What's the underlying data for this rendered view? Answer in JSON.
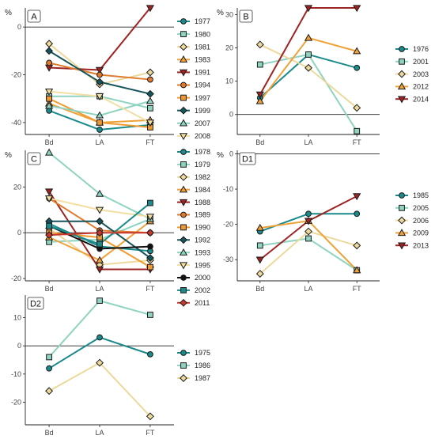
{
  "chart_data": [
    {
      "type": "line",
      "title": "A",
      "ylabel": "%",
      "categories": [
        "Bd",
        "LA",
        "FT"
      ],
      "ylim": [
        -45,
        8
      ],
      "yticks": [
        0,
        -20,
        -40
      ],
      "series": [
        {
          "name": "1977",
          "color": "#1a8a8a",
          "marker": "circle",
          "values": [
            -35,
            -43,
            -41
          ]
        },
        {
          "name": "1980",
          "color": "#8fd3c1",
          "marker": "square",
          "values": [
            -29,
            -29,
            -34
          ]
        },
        {
          "name": "1981",
          "color": "#ecd99b",
          "marker": "diamond",
          "values": [
            -7,
            -24,
            -19
          ]
        },
        {
          "name": "1983",
          "color": "#f0a23a",
          "marker": "triangle-up",
          "values": [
            -32,
            -40,
            -39
          ]
        },
        {
          "name": "1991",
          "color": "#9e2424",
          "marker": "triangle-down",
          "values": [
            -17,
            -18,
            8
          ]
        },
        {
          "name": "1994",
          "color": "#e07a2c",
          "marker": "circle",
          "values": [
            -15,
            -20,
            -22
          ]
        },
        {
          "name": "1997",
          "color": "#f09a30",
          "marker": "square",
          "values": [
            -30,
            -40,
            -42
          ]
        },
        {
          "name": "1999",
          "color": "#15555c",
          "marker": "diamond",
          "values": [
            -10,
            -23,
            -28
          ]
        },
        {
          "name": "2007",
          "color": "#8fd3c1",
          "marker": "triangle-up",
          "values": [
            -33,
            -37,
            -31
          ]
        },
        {
          "name": "2008",
          "color": "#f2dfa3",
          "marker": "triangle-down",
          "values": [
            -27,
            -29,
            -40
          ]
        }
      ]
    },
    {
      "type": "line",
      "title": "B",
      "ylabel": "%",
      "categories": [
        "Bd",
        "LA",
        "FT"
      ],
      "ylim": [
        -6,
        32
      ],
      "yticks": [
        30,
        20,
        10,
        0
      ],
      "series": [
        {
          "name": "1976",
          "color": "#1a8a8a",
          "marker": "circle",
          "values": [
            5,
            18,
            14
          ]
        },
        {
          "name": "2001",
          "color": "#8fd3c1",
          "marker": "square",
          "values": [
            15,
            18,
            -5
          ]
        },
        {
          "name": "2003",
          "color": "#ecd99b",
          "marker": "diamond",
          "values": [
            21,
            14,
            2
          ]
        },
        {
          "name": "2012",
          "color": "#f0a23a",
          "marker": "triangle-up",
          "values": [
            4,
            23,
            19
          ]
        },
        {
          "name": "2014",
          "color": "#9e2424",
          "marker": "triangle-down",
          "values": [
            6,
            32,
            32
          ]
        }
      ]
    },
    {
      "type": "line",
      "title": "C",
      "ylabel": "%",
      "categories": [
        "Bd",
        "LA",
        "FT"
      ],
      "ylim": [
        -21,
        36
      ],
      "yticks": [
        20,
        0,
        -20
      ],
      "series": [
        {
          "name": "1978",
          "color": "#1a8a8a",
          "marker": "circle",
          "values": [
            4,
            -6,
            -8
          ]
        },
        {
          "name": "1979",
          "color": "#8fd3c1",
          "marker": "square",
          "values": [
            -4,
            -3,
            6
          ]
        },
        {
          "name": "1982",
          "color": "#ecd99b",
          "marker": "diamond",
          "values": [
            2,
            -14,
            -12
          ]
        },
        {
          "name": "1984",
          "color": "#f0a23a",
          "marker": "triangle-up",
          "values": [
            -2,
            -12,
            5
          ]
        },
        {
          "name": "1988",
          "color": "#9e2424",
          "marker": "triangle-down",
          "values": [
            18,
            -16,
            -16
          ]
        },
        {
          "name": "1989",
          "color": "#e07a2c",
          "marker": "circle",
          "values": [
            15,
            1,
            0
          ]
        },
        {
          "name": "1990",
          "color": "#f09a30",
          "marker": "square",
          "values": [
            0,
            -2,
            -15
          ]
        },
        {
          "name": "1992",
          "color": "#15555c",
          "marker": "diamond",
          "values": [
            5,
            5,
            -11
          ]
        },
        {
          "name": "1993",
          "color": "#8fd3c1",
          "marker": "triangle-up",
          "values": [
            35,
            17,
            6
          ]
        },
        {
          "name": "1995",
          "color": "#f2dfa3",
          "marker": "triangle-down",
          "values": [
            15,
            10,
            7
          ]
        },
        {
          "name": "2000",
          "color": "#111111",
          "marker": "circle",
          "values": [
            3,
            -7,
            -6
          ]
        },
        {
          "name": "2002",
          "color": "#1a8a8a",
          "marker": "square",
          "values": [
            3,
            -5,
            13
          ]
        },
        {
          "name": "2011",
          "color": "#c8372d",
          "marker": "diamond",
          "values": [
            -1,
            0,
            0
          ]
        }
      ]
    },
    {
      "type": "line",
      "title": "D1",
      "ylabel": "%",
      "categories": [
        "Bd",
        "LA",
        "FT"
      ],
      "ylim": [
        -36,
        1
      ],
      "yticks": [
        0,
        -10,
        -20,
        -30
      ],
      "series": [
        {
          "name": "1985",
          "color": "#1a8a8a",
          "marker": "circle",
          "values": [
            -22,
            -17,
            -17
          ]
        },
        {
          "name": "2005",
          "color": "#8fd3c1",
          "marker": "square",
          "values": [
            -26,
            -24,
            -33
          ]
        },
        {
          "name": "2006",
          "color": "#ecd99b",
          "marker": "diamond",
          "values": [
            -34,
            -22,
            -26
          ]
        },
        {
          "name": "2009",
          "color": "#f0a23a",
          "marker": "triangle-up",
          "values": [
            -21,
            -19,
            -33
          ]
        },
        {
          "name": "2013",
          "color": "#9e2424",
          "marker": "triangle-down",
          "values": [
            -30,
            -19,
            -12
          ]
        }
      ]
    },
    {
      "type": "line",
      "title": "D2",
      "ylabel": "",
      "categories": [
        "Bd",
        "LA",
        "FT"
      ],
      "ylim": [
        -28,
        18
      ],
      "yticks": [
        10,
        0,
        -10,
        -20
      ],
      "series": [
        {
          "name": "1975",
          "color": "#1a8a8a",
          "marker": "circle",
          "values": [
            -8,
            3,
            -3
          ]
        },
        {
          "name": "1986",
          "color": "#8fd3c1",
          "marker": "square",
          "values": [
            -4,
            16,
            11
          ]
        },
        {
          "name": "1987",
          "color": "#ecd99b",
          "marker": "diamond",
          "values": [
            -16,
            -6,
            -25
          ]
        }
      ]
    }
  ]
}
